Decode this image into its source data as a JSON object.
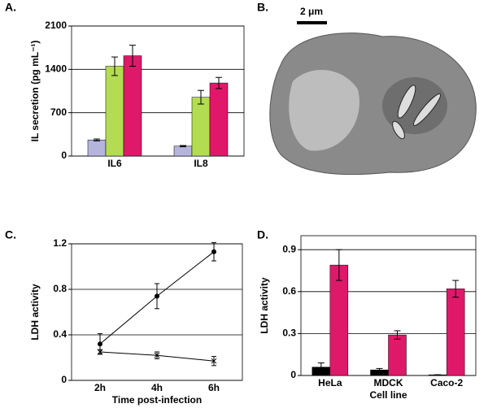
{
  "chart_data": [
    {
      "type": "bar",
      "label": "A.",
      "y_label": "IL secretion (pg mL⁻¹)",
      "categories": [
        "IL6",
        "IL8"
      ],
      "series": [
        {
          "color": "#b4b4dc",
          "values": [
            260,
            160
          ],
          "errors": [
            15,
            10
          ]
        },
        {
          "color": "#b4dc50",
          "values": [
            1450,
            950
          ],
          "errors": [
            150,
            110
          ]
        },
        {
          "color": "#e0186a",
          "values": [
            1620,
            1180
          ],
          "errors": [
            170,
            90
          ]
        }
      ],
      "ylim": [
        0,
        2100
      ],
      "yticks": [
        0,
        700,
        1400,
        2100
      ],
      "grid": true
    },
    {
      "type": "image",
      "label": "B.",
      "scale_label": "2 μm"
    },
    {
      "type": "line",
      "label": "C.",
      "x_label": "Time post-infection",
      "y_label": "LDH activity",
      "categories": [
        "2h",
        "4h",
        "6h"
      ],
      "series": [
        {
          "color": "#000000",
          "marker": "circle",
          "values": [
            0.32,
            0.74,
            1.13
          ],
          "errors": [
            0.09,
            0.11,
            0.08
          ]
        },
        {
          "color": "#000000",
          "marker": "x",
          "values": [
            0.25,
            0.22,
            0.17
          ],
          "errors": [
            0.02,
            0.03,
            0.04
          ]
        }
      ],
      "ylim": [
        0,
        1.2
      ],
      "yticks": [
        0,
        0.4,
        0.8,
        1.2
      ],
      "grid": true
    },
    {
      "type": "bar",
      "label": "D.",
      "x_label": "Cell line",
      "y_label": "LDH activity",
      "categories": [
        "HeLa",
        "MDCK",
        "Caco-2"
      ],
      "series": [
        {
          "color": "#000000",
          "values": [
            0.06,
            0.04,
            0.005
          ],
          "errors": [
            0.03,
            0.01,
            0
          ]
        },
        {
          "color": "#e0186a",
          "values": [
            0.79,
            0.29,
            0.62
          ],
          "errors": [
            0.11,
            0.03,
            0.06
          ]
        }
      ],
      "ylim": [
        0,
        1.0
      ],
      "yticks": [
        0,
        0.3,
        0.6,
        0.9
      ],
      "grid": true
    }
  ]
}
